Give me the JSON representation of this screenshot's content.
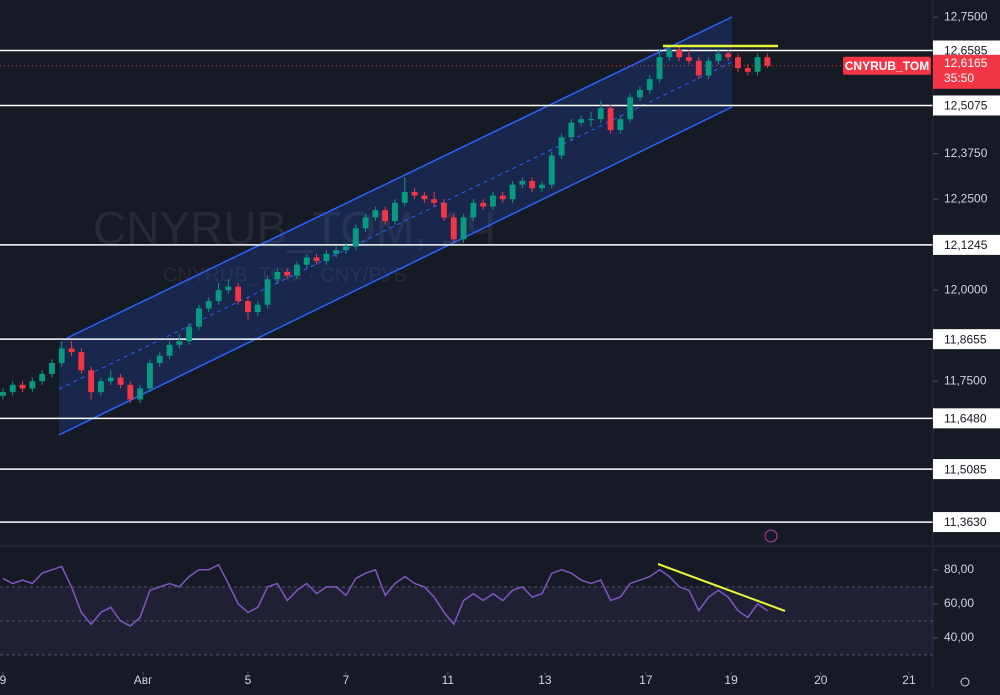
{
  "chart_data": {
    "type": "candlestick",
    "title": "CNYRUB_TOM, 1Ч",
    "subtitle": "CNYRUB_TOM · CNY/РУБ",
    "symbol": "CNYRUB_TOM",
    "countdown": "35:50",
    "up_color": "#089981",
    "down_color": "#f23645",
    "xlim": [
      -0.06,
      18.98
    ],
    "xticks": [
      {
        "value": 0,
        "label": "9"
      },
      {
        "value": 2.86,
        "label": "Авг"
      },
      {
        "value": 5.0,
        "label": "5"
      },
      {
        "value": 7.0,
        "label": "7"
      },
      {
        "value": 9.08,
        "label": "11"
      },
      {
        "value": 11.06,
        "label": "13"
      },
      {
        "value": 13.12,
        "label": "17"
      },
      {
        "value": 14.86,
        "label": "19"
      },
      {
        "value": 16.69,
        "label": "20"
      },
      {
        "value": 18.49,
        "label": "21"
      }
    ],
    "ylim": [
      11.3,
      12.8
    ],
    "yticks": [
      {
        "value": 12.75,
        "label": "12,7500"
      },
      {
        "value": 12.375,
        "label": "12,3750"
      },
      {
        "value": 12.25,
        "label": "12,2500"
      },
      {
        "value": 12.0,
        "label": "12,0000"
      },
      {
        "value": 11.75,
        "label": "11,7500"
      }
    ],
    "levels": [
      {
        "value": 12.6585,
        "label": "12,6585"
      },
      {
        "value": 12.5075,
        "label": "12,5075"
      },
      {
        "value": 12.1245,
        "label": "12,1245"
      },
      {
        "value": 11.8655,
        "label": "11,8655"
      },
      {
        "value": 11.648,
        "label": "11,6480"
      },
      {
        "value": 11.5085,
        "label": "11,5085"
      },
      {
        "value": 11.363,
        "label": "11,3630"
      }
    ],
    "last_price": {
      "value": 12.6165,
      "label": "12,6165"
    },
    "x": [
      0,
      0.2,
      0.4,
      0.6,
      0.8,
      1.0,
      1.2,
      1.4,
      1.6,
      1.8,
      2.0,
      2.2,
      2.4,
      2.6,
      2.8,
      3.0,
      3.2,
      3.4,
      3.6,
      3.8,
      4.0,
      4.2,
      4.4,
      4.6,
      4.8,
      5.0,
      5.2,
      5.4,
      5.6,
      5.8,
      6.0,
      6.2,
      6.4,
      6.6,
      6.8,
      7.0,
      7.2,
      7.4,
      7.6,
      7.8,
      8.0,
      8.2,
      8.4,
      8.6,
      8.8,
      9.0,
      9.2,
      9.4,
      9.6,
      9.8,
      10.0,
      10.2,
      10.4,
      10.6,
      10.8,
      11.0,
      11.2,
      11.4,
      11.6,
      11.8,
      12.0,
      12.2,
      12.4,
      12.6,
      12.8,
      13.0,
      13.2,
      13.4,
      13.6,
      13.8,
      14.0,
      14.2,
      14.4,
      14.6,
      14.8,
      15.0,
      15.2,
      15.4,
      15.6
    ],
    "ohlc": [
      [
        11.71,
        11.73,
        11.7,
        11.72
      ],
      [
        11.72,
        11.75,
        11.71,
        11.74
      ],
      [
        11.74,
        11.75,
        11.72,
        11.73
      ],
      [
        11.73,
        11.76,
        11.72,
        11.75
      ],
      [
        11.75,
        11.78,
        11.74,
        11.77
      ],
      [
        11.77,
        11.81,
        11.76,
        11.8
      ],
      [
        11.8,
        11.86,
        11.79,
        11.84
      ],
      [
        11.84,
        11.86,
        11.82,
        11.83
      ],
      [
        11.83,
        11.84,
        11.77,
        11.78
      ],
      [
        11.78,
        11.79,
        11.7,
        11.72
      ],
      [
        11.72,
        11.76,
        11.71,
        11.75
      ],
      [
        11.75,
        11.78,
        11.74,
        11.76
      ],
      [
        11.76,
        11.77,
        11.73,
        11.74
      ],
      [
        11.74,
        11.75,
        11.69,
        11.7
      ],
      [
        11.7,
        11.74,
        11.69,
        11.73
      ],
      [
        11.73,
        11.81,
        11.72,
        11.8
      ],
      [
        11.8,
        11.83,
        11.79,
        11.82
      ],
      [
        11.82,
        11.86,
        11.81,
        11.85
      ],
      [
        11.85,
        11.88,
        11.84,
        11.86
      ],
      [
        11.86,
        11.91,
        11.85,
        11.9
      ],
      [
        11.9,
        11.96,
        11.89,
        11.95
      ],
      [
        11.95,
        11.98,
        11.94,
        11.97
      ],
      [
        11.97,
        12.02,
        11.96,
        12.0
      ],
      [
        12.0,
        12.03,
        11.99,
        12.01
      ],
      [
        12.01,
        12.02,
        11.96,
        11.97
      ],
      [
        11.97,
        11.98,
        11.92,
        11.94
      ],
      [
        11.94,
        11.97,
        11.93,
        11.96
      ],
      [
        11.96,
        12.04,
        11.95,
        12.03
      ],
      [
        12.03,
        12.06,
        12.02,
        12.05
      ],
      [
        12.05,
        12.06,
        12.03,
        12.04
      ],
      [
        12.04,
        12.08,
        12.03,
        12.07
      ],
      [
        12.07,
        12.1,
        12.06,
        12.09
      ],
      [
        12.09,
        12.1,
        12.07,
        12.08
      ],
      [
        12.08,
        12.11,
        12.07,
        12.1
      ],
      [
        12.1,
        12.12,
        12.09,
        12.11
      ],
      [
        12.11,
        12.13,
        12.1,
        12.12
      ],
      [
        12.12,
        12.18,
        12.11,
        12.17
      ],
      [
        12.17,
        12.21,
        12.16,
        12.2
      ],
      [
        12.2,
        12.23,
        12.19,
        12.22
      ],
      [
        12.22,
        12.23,
        12.18,
        12.19
      ],
      [
        12.19,
        12.25,
        12.18,
        12.24
      ],
      [
        12.24,
        12.31,
        12.23,
        12.27
      ],
      [
        12.27,
        12.28,
        12.25,
        12.26
      ],
      [
        12.26,
        12.27,
        12.24,
        12.25
      ],
      [
        12.25,
        12.27,
        12.23,
        12.24
      ],
      [
        12.24,
        12.25,
        12.19,
        12.2
      ],
      [
        12.2,
        12.21,
        12.13,
        12.14
      ],
      [
        12.14,
        12.21,
        12.13,
        12.2
      ],
      [
        12.2,
        12.25,
        12.19,
        12.24
      ],
      [
        12.24,
        12.25,
        12.22,
        12.23
      ],
      [
        12.23,
        12.27,
        12.22,
        12.26
      ],
      [
        12.26,
        12.27,
        12.24,
        12.25
      ],
      [
        12.25,
        12.3,
        12.24,
        12.29
      ],
      [
        12.29,
        12.31,
        12.28,
        12.3
      ],
      [
        12.3,
        12.31,
        12.27,
        12.28
      ],
      [
        12.28,
        12.3,
        12.27,
        12.29
      ],
      [
        12.29,
        12.38,
        12.28,
        12.37
      ],
      [
        12.37,
        12.43,
        12.36,
        12.42
      ],
      [
        12.42,
        12.47,
        12.41,
        12.46
      ],
      [
        12.46,
        12.48,
        12.45,
        12.47
      ],
      [
        12.47,
        12.49,
        12.45,
        12.47
      ],
      [
        12.47,
        12.52,
        12.46,
        12.5
      ],
      [
        12.5,
        12.51,
        12.43,
        12.44
      ],
      [
        12.44,
        12.48,
        12.43,
        12.47
      ],
      [
        12.47,
        12.54,
        12.46,
        12.53
      ],
      [
        12.53,
        12.56,
        12.52,
        12.55
      ],
      [
        12.55,
        12.59,
        12.54,
        12.58
      ],
      [
        12.58,
        12.66,
        12.57,
        12.64
      ],
      [
        12.64,
        12.67,
        12.63,
        12.66
      ],
      [
        12.66,
        12.67,
        12.63,
        12.64
      ],
      [
        12.64,
        12.66,
        12.62,
        12.63
      ],
      [
        12.63,
        12.64,
        12.58,
        12.59
      ],
      [
        12.59,
        12.64,
        12.58,
        12.63
      ],
      [
        12.63,
        12.66,
        12.62,
        12.65
      ],
      [
        12.65,
        12.66,
        12.63,
        12.64
      ],
      [
        12.64,
        12.65,
        12.6,
        12.61
      ],
      [
        12.61,
        12.62,
        12.59,
        12.6
      ],
      [
        12.6,
        12.65,
        12.59,
        12.64
      ],
      [
        12.64,
        12.65,
        12.61,
        12.6165
      ]
    ],
    "rsi": {
      "color": "#7e57c2",
      "ylim": [
        20,
        94
      ],
      "yticks": [
        {
          "value": 80,
          "label": "80,00"
        },
        {
          "value": 60,
          "label": "60,00"
        },
        {
          "value": 40,
          "label": "40,00"
        }
      ],
      "bands": [
        70,
        50,
        30
      ],
      "values": [
        75,
        72,
        74,
        72,
        78,
        80,
        82,
        70,
        55,
        48,
        55,
        58,
        50,
        47,
        52,
        68,
        70,
        72,
        70,
        76,
        80,
        80,
        83,
        72,
        60,
        55,
        58,
        70,
        72,
        62,
        68,
        72,
        66,
        70,
        70,
        65,
        75,
        78,
        80,
        65,
        72,
        76,
        72,
        70,
        64,
        55,
        48,
        62,
        66,
        62,
        66,
        62,
        68,
        70,
        64,
        66,
        78,
        80,
        78,
        74,
        72,
        74,
        62,
        64,
        72,
        74,
        76,
        80,
        76,
        70,
        68,
        56,
        64,
        68,
        64,
        56,
        52,
        60,
        56
      ]
    }
  }
}
